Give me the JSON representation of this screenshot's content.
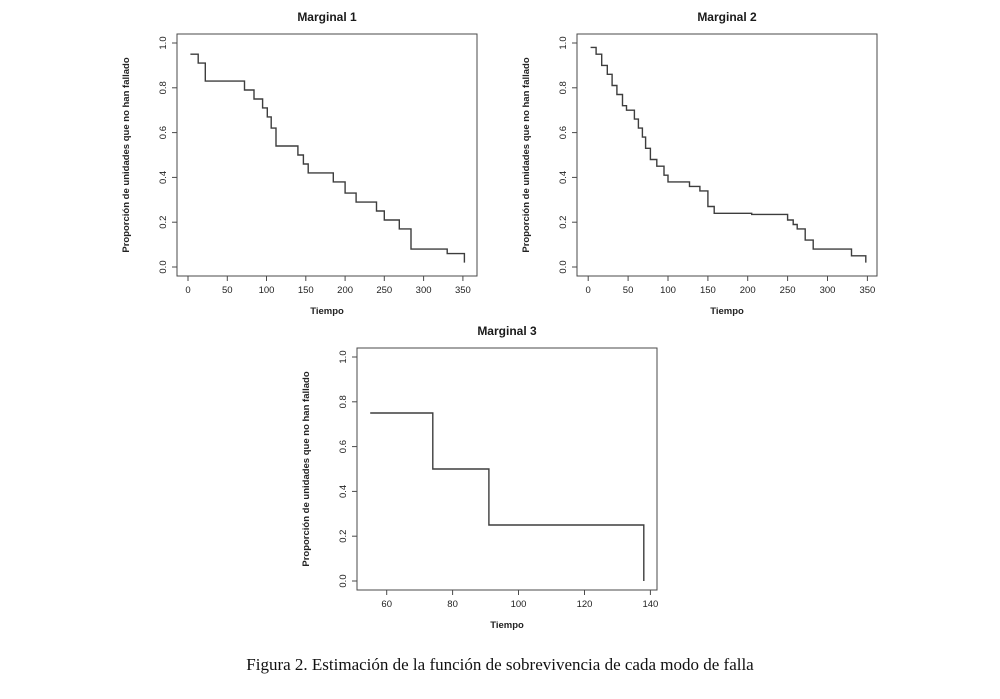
{
  "caption": "Figura 2. Estimación de la función de sobrevivencia de cada modo de falla",
  "colors": {
    "curve": "#3d3d3d",
    "axis": "#4a4a4a",
    "text": "#1a1a1a",
    "background": "#ffffff"
  },
  "chart_data": [
    {
      "type": "line",
      "style": "step",
      "title": "Marginal 1",
      "xlabel": "Tiempo",
      "ylabel": "Proporción de unidades que no han fallado",
      "xlim": [
        -14,
        368
      ],
      "ylim": [
        -0.04,
        1.04
      ],
      "xticks": [
        0,
        50,
        100,
        150,
        200,
        250,
        300,
        350
      ],
      "yticks": [
        0,
        0.2,
        0.4,
        0.6,
        0.8,
        1
      ],
      "grid": false,
      "legend": "none",
      "points": [
        [
          3,
          0.95
        ],
        [
          13,
          0.91
        ],
        [
          22,
          0.83
        ],
        [
          72,
          0.79
        ],
        [
          84,
          0.75
        ],
        [
          95,
          0.71
        ],
        [
          101,
          0.67
        ],
        [
          106,
          0.62
        ],
        [
          112,
          0.54
        ],
        [
          140,
          0.5
        ],
        [
          147,
          0.46
        ],
        [
          153,
          0.42
        ],
        [
          185,
          0.38
        ],
        [
          200,
          0.33
        ],
        [
          214,
          0.29
        ],
        [
          240,
          0.25
        ],
        [
          250,
          0.21
        ],
        [
          269,
          0.17
        ],
        [
          284,
          0.08
        ],
        [
          330,
          0.06
        ],
        [
          352,
          0.02
        ]
      ]
    },
    {
      "type": "line",
      "style": "step",
      "title": "Marginal 2",
      "xlabel": "Tiempo",
      "ylabel": "Proporción de unidades que no han fallado",
      "xlim": [
        -14,
        362
      ],
      "ylim": [
        -0.04,
        1.04
      ],
      "xticks": [
        0,
        50,
        100,
        150,
        200,
        250,
        300,
        350
      ],
      "yticks": [
        0,
        0.2,
        0.4,
        0.6,
        0.8,
        1
      ],
      "grid": false,
      "legend": "none",
      "points": [
        [
          3,
          0.98
        ],
        [
          10,
          0.95
        ],
        [
          17,
          0.9
        ],
        [
          24,
          0.86
        ],
        [
          30,
          0.81
        ],
        [
          36,
          0.77
        ],
        [
          43,
          0.72
        ],
        [
          48,
          0.7
        ],
        [
          58,
          0.66
        ],
        [
          63,
          0.62
        ],
        [
          68,
          0.58
        ],
        [
          72,
          0.53
        ],
        [
          78,
          0.48
        ],
        [
          86,
          0.45
        ],
        [
          95,
          0.41
        ],
        [
          100,
          0.38
        ],
        [
          127,
          0.36
        ],
        [
          140,
          0.34
        ],
        [
          150,
          0.27
        ],
        [
          158,
          0.24
        ],
        [
          205,
          0.235
        ],
        [
          250,
          0.21
        ],
        [
          257,
          0.19
        ],
        [
          262,
          0.17
        ],
        [
          272,
          0.12
        ],
        [
          282,
          0.08
        ],
        [
          330,
          0.05
        ],
        [
          348,
          0.02
        ]
      ]
    },
    {
      "type": "line",
      "style": "step",
      "title": "Marginal 3",
      "xlabel": "Tiempo",
      "ylabel": "Proporción de unidades que no han fallado",
      "xlim": [
        51,
        142
      ],
      "ylim": [
        -0.04,
        1.04
      ],
      "xticks": [
        60,
        80,
        100,
        120,
        140
      ],
      "yticks": [
        0,
        0.2,
        0.4,
        0.6,
        0.8,
        1
      ],
      "grid": false,
      "legend": "none",
      "points": [
        [
          55,
          0.75
        ],
        [
          74,
          0.5
        ],
        [
          91,
          0.25
        ],
        [
          138,
          0.0
        ]
      ]
    }
  ]
}
